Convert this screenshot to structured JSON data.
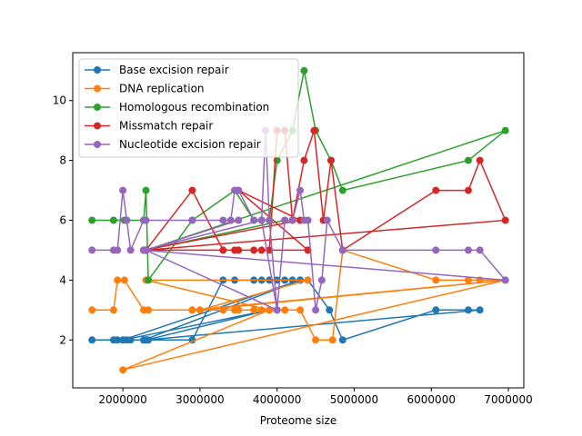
{
  "chart_data": {
    "type": "line",
    "xlabel": "Proteome size",
    "ylabel": "",
    "xlim": [
      1350000,
      7200000
    ],
    "ylim": [
      0.4,
      11.6
    ],
    "xticks": [
      2000000,
      3000000,
      4000000,
      5000000,
      6000000,
      7000000
    ],
    "xtick_labels": [
      "2000000",
      "3000000",
      "4000000",
      "5000000",
      "6000000",
      "7000000"
    ],
    "yticks": [
      2,
      4,
      6,
      8,
      10
    ],
    "ytick_labels": [
      "2",
      "4",
      "6",
      "8",
      "10"
    ],
    "grid": false,
    "legend_position": "top-left",
    "series": [
      {
        "name": "Base excision  repair",
        "color": "#1f77b4",
        "x": [
          1600000,
          1880000,
          1930000,
          2050000,
          2100000,
          2270000,
          2300000,
          2330000,
          2900000,
          3300000,
          3450000,
          3700000,
          3800000,
          3900000,
          4000000,
          4100000,
          4200000,
          4300000,
          4400000,
          4680000,
          4850000,
          6060000,
          6480000,
          6630000,
          2300000,
          3900000,
          2000000,
          4300000,
          2270000
        ],
        "y": [
          2,
          2,
          2,
          2,
          2,
          2,
          2,
          2,
          2,
          4,
          4,
          4,
          4,
          4,
          4,
          4,
          4,
          4,
          4,
          3,
          2,
          3,
          3,
          3,
          2,
          3,
          2,
          4,
          2
        ]
      },
      {
        "name": "DNA replication",
        "color": "#ff7f0e",
        "x": [
          1600000,
          1880000,
          1930000,
          2020000,
          2270000,
          2330000,
          2900000,
          3300000,
          3450000,
          3500000,
          3700000,
          3800000,
          3900000,
          4000000,
          4100000,
          4300000,
          4500000,
          4720000,
          4850000,
          6060000,
          6480000,
          6630000,
          6960000,
          2000000,
          3900000,
          2300000,
          4400000,
          3000000,
          6960000,
          2900000
        ],
        "y": [
          3,
          3,
          4,
          4,
          3,
          3,
          3,
          3,
          3,
          3,
          3,
          3,
          3,
          3,
          3,
          3,
          2,
          2,
          5,
          4,
          4,
          4,
          4,
          1,
          3,
          4,
          4,
          3,
          4,
          3
        ]
      },
      {
        "name": "Homologous recombination",
        "color": "#2ca02c",
        "x": [
          1600000,
          1880000,
          2020000,
          2270000,
          2300000,
          2330000,
          2900000,
          3450000,
          3700000,
          3900000,
          4000000,
          4200000,
          4350000,
          4500000,
          4700000,
          4850000,
          6480000,
          6960000,
          2300000,
          4100000,
          2300000
        ],
        "y": [
          6,
          6,
          6,
          6,
          7,
          4,
          6,
          7,
          6,
          6,
          8,
          9,
          11,
          9,
          8,
          7,
          8,
          9,
          5,
          6,
          5
        ]
      },
      {
        "name": "Missmatch repair",
        "color": "#d62728",
        "x": [
          2270000,
          2300000,
          2900000,
          3300000,
          3450000,
          3500000,
          3700000,
          3800000,
          3900000,
          4000000,
          4100000,
          4200000,
          4350000,
          4480000,
          4600000,
          4700000,
          4850000,
          6060000,
          6480000,
          6630000,
          6960000,
          2300000,
          4400000,
          3500000,
          4300000,
          2270000
        ],
        "y": [
          5,
          5,
          7,
          5,
          5,
          5,
          5,
          5,
          5,
          9,
          9,
          6,
          8,
          9,
          6,
          8,
          5,
          7,
          7,
          8,
          6,
          5,
          5,
          7,
          6,
          5
        ]
      },
      {
        "name": "Nucleotide excision repair",
        "color": "#9467bd",
        "x": [
          1600000,
          1880000,
          1930000,
          2000000,
          2050000,
          2100000,
          2270000,
          2300000,
          2900000,
          3300000,
          3400000,
          3450000,
          3500000,
          3700000,
          3800000,
          3850000,
          3900000,
          4000000,
          4100000,
          4200000,
          4300000,
          4350000,
          4400000,
          4500000,
          4580000,
          4650000,
          4850000,
          6060000,
          6480000,
          6630000,
          6960000,
          2270000,
          3800000,
          4000000,
          2300000,
          3500000
        ],
        "y": [
          5,
          5,
          5,
          7,
          6,
          5,
          6,
          6,
          6,
          6,
          6,
          7,
          7,
          6,
          6,
          9,
          6,
          3,
          6,
          6,
          7,
          6,
          6,
          3,
          4,
          6,
          5,
          5,
          5,
          5,
          4,
          5,
          6,
          3,
          5,
          6
        ]
      }
    ]
  }
}
